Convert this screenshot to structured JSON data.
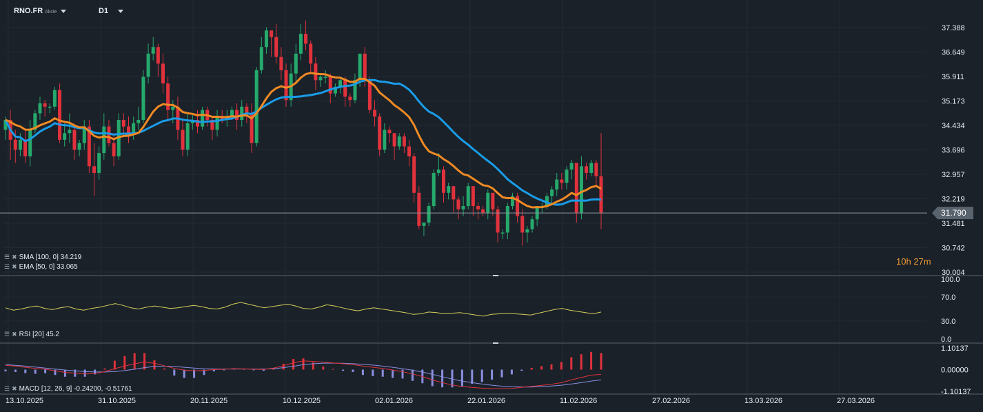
{
  "header": {
    "symbol": "RNO.FR",
    "asset_type": "Akcie",
    "timeframe": "D1"
  },
  "countdown": {
    "hours": "10",
    "h_unit": "h",
    "minutes": "27",
    "m_unit": "m"
  },
  "indicators": {
    "sma": "SMA [100, 0] 34.219",
    "ema": "EMA [50, 0] 33.065",
    "rsi": "RSI [20] 45.2",
    "macd": "MACD [12, 26, 9] -0.24200, -0.51761"
  },
  "colors": {
    "background": "#1a2129",
    "bull": "#26a96c",
    "bear": "#e0323c",
    "sma": "#1a9ce8",
    "ema": "#f08a24",
    "rsi": "#d6cf5a",
    "macd_line": "#e0323c",
    "signal_line": "#8a8fe0",
    "hist_pos": "#e0323c",
    "hist_neg": "#8a8fe0"
  },
  "chart_data": [
    {
      "type": "candlestick",
      "price_axis_ticks": [
        "37.388",
        "36.649",
        "35.911",
        "35.173",
        "34.434",
        "33.696",
        "32.957",
        "32.219",
        "31.481",
        "30.742",
        "30.004"
      ],
      "current_price": "31.790",
      "ylim": [
        30.004,
        37.388
      ],
      "date_axis_ticks": [
        "13.10.2025",
        "31.10.2025",
        "20.11.2025",
        "10.12.2025",
        "02.01.2026",
        "22.01.2026",
        "11.02.2026",
        "27.02.2026",
        "13.03.2026",
        "27.03.2026"
      ],
      "candles": [
        [
          34.3,
          34.6,
          34.0,
          34.7
        ],
        [
          34.6,
          34.0,
          33.4,
          34.9
        ],
        [
          34.0,
          33.7,
          33.3,
          34.3
        ],
        [
          33.7,
          34.0,
          33.5,
          34.2
        ],
        [
          34.0,
          33.5,
          33.3,
          34.3
        ],
        [
          33.5,
          34.3,
          33.2,
          34.6
        ],
        [
          34.3,
          34.8,
          34.2,
          34.9
        ],
        [
          34.8,
          35.1,
          34.6,
          35.3
        ],
        [
          35.1,
          35.0,
          34.7,
          35.2
        ],
        [
          35.0,
          35.0,
          34.8,
          35.1
        ],
        [
          35.0,
          35.5,
          34.9,
          35.6
        ],
        [
          35.5,
          34.0,
          33.9,
          35.7
        ],
        [
          34.0,
          34.2,
          33.8,
          34.5
        ],
        [
          34.2,
          34.3,
          33.9,
          34.8
        ],
        [
          34.3,
          33.7,
          33.4,
          34.5
        ],
        [
          33.7,
          33.9,
          33.5,
          34.0
        ],
        [
          33.9,
          34.4,
          33.7,
          34.6
        ],
        [
          34.4,
          33.2,
          33.0,
          34.6
        ],
        [
          33.2,
          33.0,
          32.3,
          33.9
        ],
        [
          33.0,
          33.6,
          32.8,
          33.8
        ],
        [
          33.6,
          34.4,
          33.4,
          34.8
        ],
        [
          34.4,
          33.9,
          33.8,
          34.6
        ],
        [
          33.9,
          33.5,
          33.2,
          34.2
        ],
        [
          33.5,
          34.6,
          33.4,
          34.8
        ],
        [
          34.6,
          34.4,
          34.2,
          34.8
        ],
        [
          34.4,
          34.2,
          33.9,
          34.7
        ],
        [
          34.2,
          34.5,
          34.0,
          34.7
        ],
        [
          34.5,
          34.6,
          34.3,
          35.0
        ],
        [
          34.6,
          35.9,
          34.5,
          36.1
        ],
        [
          35.9,
          36.6,
          35.7,
          36.9
        ],
        [
          36.6,
          36.8,
          36.4,
          37.1
        ],
        [
          36.8,
          36.3,
          35.9,
          36.9
        ],
        [
          36.3,
          35.7,
          35.4,
          36.6
        ],
        [
          35.7,
          34.9,
          34.6,
          35.9
        ],
        [
          34.9,
          35.0,
          34.5,
          35.2
        ],
        [
          35.0,
          34.3,
          34.0,
          35.3
        ],
        [
          34.3,
          33.7,
          33.5,
          34.6
        ],
        [
          33.7,
          34.5,
          33.5,
          34.8
        ],
        [
          34.5,
          34.6,
          34.3,
          34.8
        ],
        [
          34.6,
          34.4,
          34.2,
          34.9
        ],
        [
          34.4,
          34.9,
          34.3,
          35.0
        ],
        [
          34.9,
          34.6,
          34.4,
          35.0
        ],
        [
          34.6,
          34.3,
          34.0,
          34.7
        ],
        [
          34.3,
          34.7,
          34.1,
          34.9
        ],
        [
          34.7,
          34.6,
          34.5,
          34.9
        ],
        [
          34.6,
          34.7,
          34.4,
          34.9
        ],
        [
          34.7,
          34.9,
          34.6,
          35.0
        ],
        [
          34.9,
          34.6,
          34.3,
          35.1
        ],
        [
          34.6,
          35.0,
          34.4,
          35.2
        ],
        [
          35.0,
          34.8,
          34.5,
          35.1
        ],
        [
          34.8,
          33.9,
          33.6,
          35.1
        ],
        [
          33.9,
          36.1,
          33.8,
          36.2
        ],
        [
          36.1,
          36.8,
          36.0,
          37.1
        ],
        [
          36.8,
          37.3,
          36.6,
          37.4
        ],
        [
          37.3,
          37.1,
          36.5,
          37.3
        ],
        [
          37.1,
          36.5,
          36.3,
          37.5
        ],
        [
          36.5,
          36.1,
          35.8,
          36.8
        ],
        [
          36.1,
          35.2,
          35.0,
          36.3
        ],
        [
          35.2,
          36.0,
          35.0,
          36.3
        ],
        [
          36.0,
          36.6,
          35.7,
          36.9
        ],
        [
          36.6,
          37.2,
          36.4,
          37.5
        ],
        [
          37.2,
          36.9,
          36.7,
          37.6
        ],
        [
          36.9,
          36.3,
          36.0,
          37.0
        ],
        [
          36.3,
          35.8,
          35.5,
          36.5
        ],
        [
          35.8,
          35.9,
          35.6,
          36.0
        ],
        [
          35.9,
          35.9,
          35.7,
          36.1
        ],
        [
          35.9,
          35.4,
          35.1,
          36.0
        ],
        [
          35.4,
          35.6,
          35.3,
          35.7
        ],
        [
          35.6,
          35.8,
          35.4,
          35.9
        ],
        [
          35.8,
          35.3,
          35.0,
          35.9
        ],
        [
          35.3,
          35.2,
          35.0,
          35.4
        ],
        [
          35.2,
          35.8,
          35.1,
          36.0
        ],
        [
          35.8,
          36.6,
          35.6,
          36.6
        ],
        [
          36.6,
          35.8,
          35.6,
          36.8
        ],
        [
          35.8,
          34.9,
          34.8,
          35.9
        ],
        [
          34.9,
          34.7,
          34.4,
          35.2
        ],
        [
          34.7,
          33.7,
          33.5,
          34.8
        ],
        [
          33.7,
          34.3,
          33.6,
          34.5
        ],
        [
          34.3,
          34.2,
          33.9,
          34.4
        ],
        [
          34.2,
          33.8,
          33.4,
          34.2
        ],
        [
          33.8,
          34.1,
          33.7,
          34.2
        ],
        [
          34.1,
          33.8,
          33.6,
          34.2
        ],
        [
          33.8,
          33.5,
          33.2,
          34.0
        ],
        [
          33.5,
          32.4,
          32.1,
          33.6
        ],
        [
          32.4,
          31.4,
          31.3,
          32.6
        ],
        [
          31.4,
          31.5,
          31.1,
          31.5
        ],
        [
          31.5,
          32.0,
          31.4,
          32.1
        ],
        [
          32.0,
          33.0,
          31.9,
          33.1
        ],
        [
          33.0,
          33.1,
          32.9,
          33.6
        ],
        [
          33.1,
          32.4,
          32.1,
          33.2
        ],
        [
          32.4,
          32.6,
          32.2,
          32.7
        ],
        [
          32.6,
          32.2,
          31.8,
          32.6
        ],
        [
          32.2,
          31.9,
          31.6,
          32.3
        ],
        [
          31.9,
          32.0,
          31.7,
          32.3
        ],
        [
          32.0,
          32.6,
          31.9,
          32.7
        ],
        [
          32.6,
          32.0,
          31.7,
          32.6
        ],
        [
          32.0,
          31.9,
          31.6,
          32.1
        ],
        [
          31.9,
          31.8,
          31.7,
          32.0
        ],
        [
          31.8,
          32.4,
          31.6,
          32.5
        ],
        [
          32.4,
          31.9,
          31.7,
          32.4
        ],
        [
          31.9,
          31.2,
          30.9,
          32.0
        ],
        [
          31.2,
          31.2,
          31.0,
          31.3
        ],
        [
          31.2,
          32.0,
          31.0,
          32.1
        ],
        [
          32.0,
          32.3,
          31.9,
          32.4
        ],
        [
          32.3,
          31.7,
          31.5,
          32.4
        ],
        [
          31.7,
          31.2,
          30.8,
          31.9
        ],
        [
          31.2,
          31.3,
          30.9,
          31.4
        ],
        [
          31.3,
          31.6,
          31.2,
          31.7
        ],
        [
          31.6,
          32.0,
          31.4,
          32.0
        ],
        [
          32.0,
          32.0,
          31.8,
          32.1
        ],
        [
          32.0,
          32.3,
          31.9,
          32.4
        ],
        [
          32.3,
          32.5,
          32.1,
          32.6
        ],
        [
          32.5,
          32.8,
          32.3,
          33.0
        ],
        [
          32.8,
          32.7,
          32.5,
          33.0
        ],
        [
          32.7,
          33.1,
          32.5,
          33.2
        ],
        [
          33.1,
          33.3,
          32.8,
          33.4
        ],
        [
          33.3,
          31.8,
          31.5,
          33.3
        ],
        [
          31.8,
          33.2,
          31.6,
          33.5
        ],
        [
          33.2,
          33.0,
          32.8,
          33.3
        ],
        [
          33.0,
          33.3,
          32.9,
          33.4
        ],
        [
          33.3,
          32.9,
          32.6,
          33.4
        ],
        [
          32.9,
          31.8,
          31.3,
          34.2
        ]
      ]
    },
    {
      "type": "line",
      "name": "RSI [20]",
      "ylim": [
        0,
        100
      ],
      "ticks": [
        "100.0",
        "70.0",
        "30.0",
        "0.0"
      ],
      "values": [
        52,
        48,
        50,
        53,
        55,
        51,
        49,
        52,
        54,
        50,
        48,
        51,
        53,
        56,
        59,
        56,
        52,
        50,
        53,
        55,
        53,
        51,
        52,
        54,
        56,
        54,
        51,
        50,
        53,
        58,
        61,
        58,
        55,
        52,
        54,
        56,
        58,
        55,
        51,
        50,
        53,
        57,
        55,
        52,
        49,
        47,
        50,
        52,
        50,
        48,
        46,
        44,
        41,
        42,
        45,
        44,
        42,
        43,
        44,
        42,
        40,
        38,
        41,
        42,
        43,
        42,
        41,
        40,
        43,
        46,
        49,
        51,
        48,
        46,
        44,
        42,
        45
      ]
    },
    {
      "type": "line",
      "name": "MACD [12, 26, 9]",
      "ylim": [
        -1.10137,
        1.10137
      ],
      "ticks": [
        "1.10137",
        "0.00000",
        "-1.10137"
      ],
      "macd": [
        0.22,
        0.18,
        0.12,
        0.06,
        0.02,
        -0.06,
        -0.14,
        -0.18,
        -0.22,
        -0.2,
        -0.1,
        0.05,
        0.18,
        0.3,
        0.38,
        0.32,
        0.2,
        0.06,
        -0.02,
        -0.06,
        -0.04,
        0.0,
        0.02,
        0.05,
        0.04,
        0.02,
        0.01,
        0.08,
        0.2,
        0.35,
        0.44,
        0.42,
        0.38,
        0.34,
        0.3,
        0.26,
        0.18,
        0.12,
        0.06,
        -0.02,
        -0.1,
        -0.22,
        -0.35,
        -0.52,
        -0.66,
        -0.78,
        -0.86,
        -0.9,
        -0.94,
        -0.96,
        -0.97,
        -0.95,
        -0.9,
        -0.85,
        -0.8,
        -0.74,
        -0.66,
        -0.52,
        -0.4,
        -0.28,
        -0.24
      ],
      "signal": [
        0.25,
        0.22,
        0.18,
        0.13,
        0.08,
        0.03,
        -0.02,
        -0.06,
        -0.1,
        -0.12,
        -0.12,
        -0.1,
        -0.05,
        0.02,
        0.1,
        0.16,
        0.18,
        0.16,
        0.12,
        0.08,
        0.05,
        0.03,
        0.03,
        0.03,
        0.03,
        0.03,
        0.03,
        0.05,
        0.1,
        0.17,
        0.25,
        0.3,
        0.33,
        0.33,
        0.32,
        0.3,
        0.27,
        0.23,
        0.18,
        0.12,
        0.05,
        -0.03,
        -0.12,
        -0.24,
        -0.36,
        -0.48,
        -0.58,
        -0.66,
        -0.73,
        -0.79,
        -0.84,
        -0.87,
        -0.88,
        -0.88,
        -0.86,
        -0.83,
        -0.79,
        -0.73,
        -0.66,
        -0.58,
        -0.52
      ]
    }
  ]
}
